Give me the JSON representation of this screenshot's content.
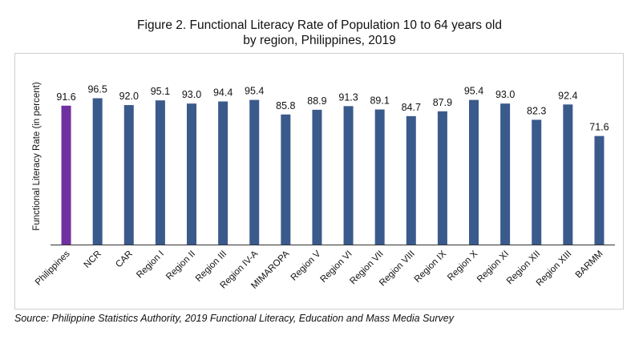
{
  "title_line1": "Figure 2. Functional Literacy Rate of Population 10 to 64 years old",
  "title_line2": "by region, Philippines, 2019",
  "source": "Source: Philippine Statistics Authority, 2019 Functional Literacy, Education and Mass Media Survey",
  "colors": {
    "highlight": "#7030a0",
    "bar": "#3b5a8c",
    "axis": "#333333"
  },
  "chart_data": {
    "type": "bar",
    "ylabel": "Functional Literacy Rate (in percent)",
    "xlabel": "",
    "ylim": [
      0,
      110
    ],
    "grid": false,
    "categories": [
      "Philippines",
      "NCR",
      "CAR",
      "Region I",
      "Region II",
      "Region III",
      "Region IV-A",
      "MIMAROPA",
      "Region V",
      "Region VI",
      "Region VII",
      "Region VIII",
      "Region IX",
      "Region X",
      "Region XI",
      "Region XII",
      "Region XIII",
      "BARMM"
    ],
    "values": [
      91.6,
      96.5,
      92.0,
      95.1,
      93.0,
      94.4,
      95.4,
      85.8,
      88.9,
      91.3,
      89.1,
      84.7,
      87.9,
      95.4,
      93.0,
      82.3,
      92.4,
      71.6
    ],
    "labels": [
      "91.6",
      "96.5",
      "92.0",
      "95.1",
      "93.0",
      "94.4",
      "95.4",
      "85.8",
      "88.9",
      "91.3",
      "89.1",
      "84.7",
      "87.9",
      "95.4",
      "93.0",
      "82.3",
      "92.4",
      "71.6"
    ],
    "highlight_category": "Philippines"
  }
}
